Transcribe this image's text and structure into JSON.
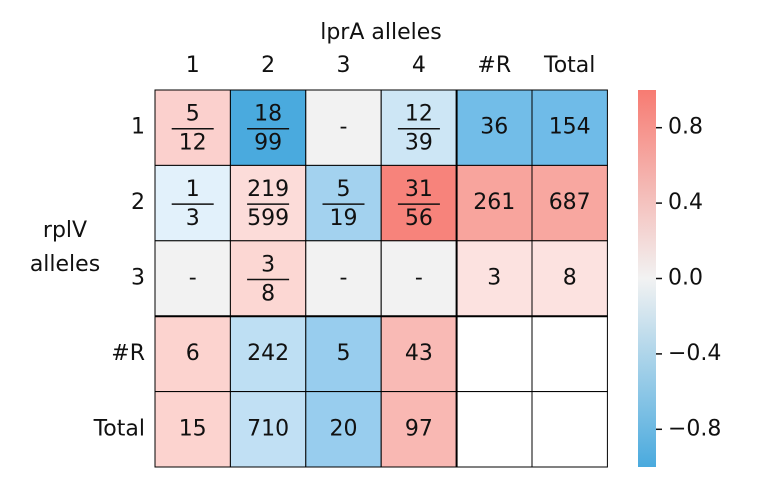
{
  "chart_data": {
    "type": "heatmap",
    "x_label": "lprA alleles",
    "y_label": "rplV alleles",
    "columns": [
      "1",
      "2",
      "3",
      "4",
      "#R",
      "Total"
    ],
    "rows": [
      "1",
      "2",
      "3",
      "#R",
      "Total"
    ],
    "cells": [
      [
        {
          "numerator": 5,
          "denominator": 12,
          "color": "#fbd0cd"
        },
        {
          "numerator": 18,
          "denominator": 99,
          "color": "#4aaade"
        },
        {
          "label": "-",
          "color": "#f2f2f2"
        },
        {
          "numerator": 12,
          "denominator": 39,
          "color": "#cde6f5"
        },
        {
          "label": 36,
          "color": "#72bde8"
        },
        {
          "label": 154,
          "color": "#6fbbe8"
        }
      ],
      [
        {
          "numerator": 1,
          "denominator": 3,
          "color": "#e2f1fb"
        },
        {
          "numerator": 219,
          "denominator": 599,
          "color": "#fcdcd9"
        },
        {
          "numerator": 5,
          "denominator": 19,
          "color": "#a3d2ef"
        },
        {
          "numerator": 31,
          "denominator": 56,
          "color": "#f7837b"
        },
        {
          "label": 261,
          "color": "#f8a49d"
        },
        {
          "label": 687,
          "color": "#f8a7a0"
        }
      ],
      [
        {
          "label": "-",
          "color": "#f2f2f2"
        },
        {
          "numerator": 3,
          "denominator": 8,
          "color": "#fcd7d3"
        },
        {
          "label": "-",
          "color": "#f2f2f2"
        },
        {
          "label": "-",
          "color": "#f2f2f2"
        },
        {
          "label": 3,
          "color": "#fce2e0"
        },
        {
          "label": 8,
          "color": "#fce2e0"
        }
      ],
      [
        {
          "label": 6,
          "color": "#fcd3cf"
        },
        {
          "label": 242,
          "color": "#bedff3"
        },
        {
          "label": 5,
          "color": "#98cdee"
        },
        {
          "label": 43,
          "color": "#f9bab5"
        },
        null,
        null
      ],
      [
        {
          "label": 15,
          "color": "#fcd3cf"
        },
        {
          "label": 710,
          "color": "#c1e0f4"
        },
        {
          "label": 20,
          "color": "#98cdee"
        },
        {
          "label": 97,
          "color": "#f9b8b3"
        },
        null,
        null
      ]
    ],
    "colorbar": {
      "ylim": [
        -1,
        1
      ],
      "colors": [
        "#4aaade",
        "#f2f2f2",
        "#f77b72"
      ],
      "yticks": [
        0.8,
        0.4,
        {
          "value": 0,
          "label": "0.0"
        },
        {
          "value": -0.4,
          "label": "−0.4"
        },
        {
          "value": -0.8,
          "label": "−0.8"
        }
      ]
    }
  }
}
